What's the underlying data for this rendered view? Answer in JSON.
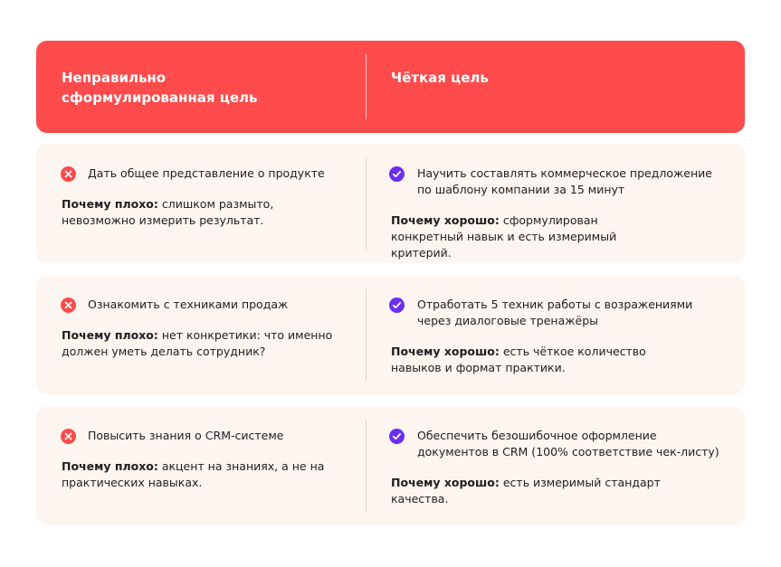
{
  "header": {
    "left_title": "Неправильно сформулированная цель",
    "right_title": "Чёткая цель"
  },
  "colors": {
    "accent": "#FF4B4B",
    "good": "#6B2EF5",
    "row_bg": "#FDF5F0"
  },
  "rows": [
    {
      "bad_goal": "Дать общее представление о продукте",
      "bad_label": "Почему плохо:",
      "bad_reason": " слишком размыто, невозможно измерить результат.",
      "good_goal": "Научить составлять коммерческое предложение по шаблону компании за 15 минут",
      "good_label": "Почему хорошо:",
      "good_reason": " сформулирован конкретный навык и есть измеримый критерий."
    },
    {
      "bad_goal": "Ознакомить с техниками продаж",
      "bad_label": "Почему плохо:",
      "bad_reason": " нет конкретики: что именно должен уметь делать сотрудник?",
      "good_goal": "Отработать 5 техник работы с возражениями через диалоговые тренажёры",
      "good_label": "Почему хорошо:",
      "good_reason": " есть чёткое количество навыков и формат практики."
    },
    {
      "bad_goal": "Повысить знания о CRM-системе",
      "bad_label": "Почему плохо:",
      "bad_reason": " акцент на знаниях, а не на практических навыках.",
      "good_goal": "Обеспечить безошибочное оформление документов в CRM (100% соответствие чек-листу)",
      "good_label": "Почему хорошо:",
      "good_reason": " есть измеримый стандарт качества."
    }
  ]
}
